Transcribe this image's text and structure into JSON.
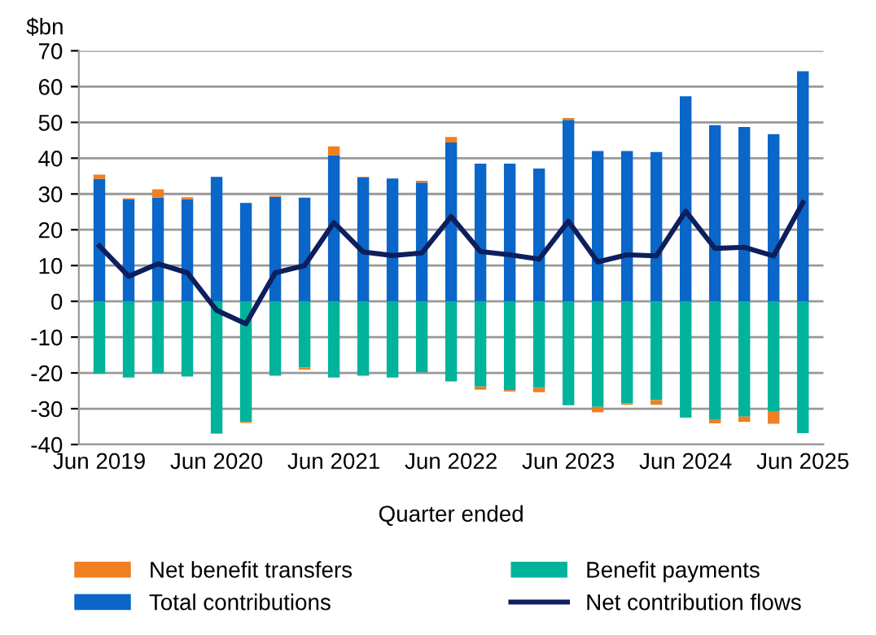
{
  "chart_data": {
    "type": "bar",
    "stacked": true,
    "xlabel": "Quarter ended",
    "ylabel": "$bn",
    "categories": [
      "Jun 2019",
      null,
      null,
      null,
      "Jun 2020",
      null,
      null,
      null,
      "Jun 2021",
      null,
      null,
      null,
      "Jun 2022",
      null,
      null,
      null,
      "Jun 2023",
      null,
      null,
      null,
      "Jun 2024",
      null,
      null,
      null,
      "Jun 2025"
    ],
    "series": [
      {
        "name": "Total contributions",
        "color": "#0a66c8",
        "values": [
          34.2,
          28.5,
          29,
          28.5,
          34.8,
          27.5,
          29.2,
          29,
          40.8,
          34.6,
          34.3,
          33.2,
          44.4,
          38.5,
          38.5,
          37.1,
          50.7,
          42,
          42,
          41.7,
          57.3,
          49.2,
          48.7,
          46.7,
          64.3
        ]
      },
      {
        "name": "Benefit payments",
        "color": "#00b39b",
        "values": [
          -20.2,
          -21.3,
          -20.1,
          -21,
          -36.8,
          -33.7,
          -20.8,
          -18.5,
          -21.3,
          -20.8,
          -21.3,
          -19.8,
          -22.4,
          -23.8,
          -24.8,
          -24.2,
          -29,
          -29.5,
          -28.5,
          -27.6,
          -32.5,
          -33.1,
          -32.2,
          -30.7,
          -36.8
        ]
      },
      {
        "name": "Net benefit transfers",
        "color": "#f07f22",
        "values": [
          1.2,
          0.3,
          2.3,
          0.6,
          -0.2,
          -0.3,
          0.3,
          -0.6,
          2.5,
          0.2,
          null,
          0.5,
          1.5,
          -0.9,
          -0.4,
          -1.2,
          0.5,
          -1.5,
          -0.4,
          -1.3,
          null,
          -1,
          -1.5,
          -3.5,
          null
        ]
      },
      {
        "name": "Net contribution flows",
        "type": "line",
        "color": "#0d1f5c",
        "values": [
          15.5,
          7,
          10.5,
          8,
          -2.5,
          -6.3,
          8,
          10,
          22,
          13.8,
          12.8,
          13.5,
          23.7,
          13.9,
          13,
          11.8,
          22.4,
          11,
          13,
          12.7,
          25.2,
          14.8,
          15.1,
          12.7,
          27.6
        ]
      }
    ],
    "ylim": [
      -40,
      70
    ],
    "yticks": [
      -40,
      -30,
      -20,
      -10,
      0,
      10,
      20,
      30,
      40,
      50,
      60,
      70
    ],
    "grid": "y",
    "legend": "bottom",
    "marker": "none",
    "line_style": "solid"
  }
}
